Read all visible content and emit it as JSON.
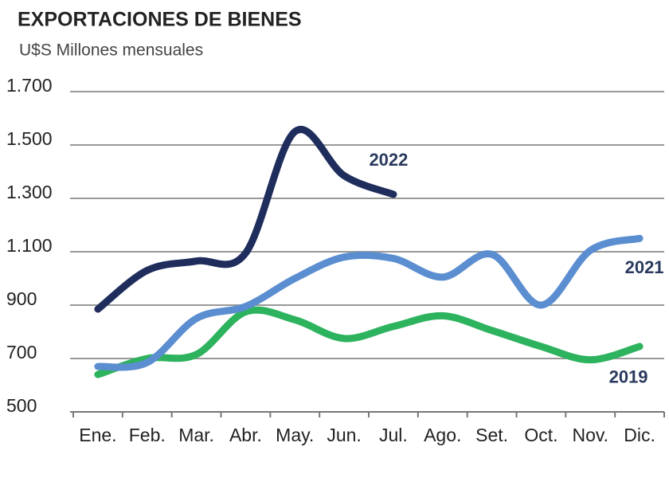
{
  "chart_data": {
    "type": "line",
    "title": "EXPORTACIONES DE BIENES",
    "subtitle": "U$S Millones  mensuales",
    "categories": [
      "Ene.",
      "Feb.",
      "Mar.",
      "Abr.",
      "May.",
      "Jun.",
      "Jul.",
      "Ago.",
      "Set.",
      "Oct.",
      "Nov.",
      "Dic."
    ],
    "series": [
      {
        "name": "2022",
        "color": "#1f2d5c",
        "values": [
          885,
          1030,
          1065,
          1095,
          1550,
          1385,
          1315,
          null,
          null,
          null,
          null,
          null
        ]
      },
      {
        "name": "2021",
        "color": "#5b8ed0",
        "values": [
          670,
          685,
          850,
          895,
          1000,
          1080,
          1075,
          1005,
          1090,
          900,
          1105,
          1150
        ]
      },
      {
        "name": "2019",
        "color": "#2db35d",
        "values": [
          640,
          700,
          715,
          875,
          845,
          775,
          820,
          860,
          805,
          745,
          695,
          745
        ]
      }
    ],
    "ylim": [
      500,
      1700
    ],
    "yticks": [
      500,
      700,
      900,
      {
        "value": 1100,
        "label": "1.100"
      },
      {
        "value": 1300,
        "label": "1.300"
      },
      {
        "value": 1500,
        "label": "1.500"
      },
      {
        "value": 1700,
        "label": "1.700"
      }
    ],
    "grid": true
  }
}
